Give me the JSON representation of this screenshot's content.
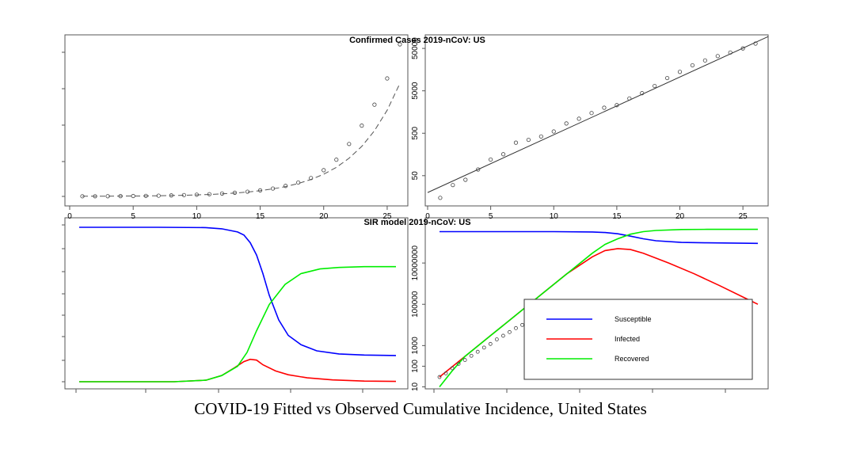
{
  "caption": "COVID-19 Fitted vs Observed Cumulative Incidence, United States",
  "chart_data": [
    {
      "type": "scatter",
      "panel": "top-left",
      "title": "Confirmed Cases 2019-nCoV: US",
      "scale": "linear",
      "xlim": [
        0,
        27
      ],
      "x_ticks": [
        "0",
        "5",
        "10",
        "15",
        "20",
        "25"
      ],
      "series": [
        {
          "style": "observed points",
          "x": [
            1,
            2,
            3,
            4,
            5,
            6,
            7,
            8,
            9,
            10,
            11,
            12,
            13,
            14,
            15,
            16,
            17,
            18,
            19,
            20,
            21,
            22,
            23,
            24,
            25,
            26
          ],
          "values": [
            5,
            6,
            8,
            11,
            15,
            20,
            28,
            38,
            50,
            65,
            85,
            110,
            140,
            180,
            230,
            300,
            400,
            530,
            700,
            1000,
            1400,
            2000,
            2700,
            3500,
            4500,
            5800
          ]
        },
        {
          "style": "fitted curve",
          "x": [
            1,
            2,
            3,
            4,
            5,
            6,
            7,
            8,
            9,
            10,
            11,
            12,
            13,
            14,
            15,
            16,
            17,
            18,
            19,
            20,
            21,
            22,
            23,
            24,
            25,
            26
          ],
          "values": [
            5,
            7,
            9,
            11,
            15,
            19,
            25,
            33,
            43,
            56,
            74,
            97,
            127,
            166,
            218,
            286,
            375,
            492,
            645,
            846,
            1110,
            1456,
            1910,
            2506,
            3287,
            4312
          ]
        }
      ]
    },
    {
      "type": "scatter",
      "panel": "top-right",
      "scale": "log",
      "xlim": [
        0,
        27
      ],
      "x_ticks": [
        "0",
        "5",
        "10",
        "15",
        "20",
        "25"
      ],
      "y_ticks": [
        "50",
        "500",
        "5000",
        "50000"
      ],
      "series": [
        {
          "style": "observed points",
          "x": [
            1,
            2,
            3,
            4,
            5,
            6,
            7,
            8,
            9,
            10,
            11,
            12,
            13,
            14,
            15,
            16,
            17,
            18,
            19,
            20,
            21,
            22,
            23,
            24,
            25,
            26
          ],
          "values": [
            15,
            30,
            40,
            70,
            120,
            160,
            300,
            350,
            420,
            550,
            850,
            1100,
            1500,
            2000,
            2300,
            3300,
            4400,
            6500,
            10000,
            14000,
            20000,
            26000,
            33000,
            40000,
            50000,
            65000
          ]
        },
        {
          "style": "fitted line",
          "x": [
            0,
            27
          ],
          "values": [
            20,
            95000
          ]
        }
      ]
    },
    {
      "type": "line",
      "panel": "bottom-left",
      "title": "SIR model 2019-nCoV: US",
      "scale": "linear",
      "series": [
        {
          "name": "Susceptible",
          "color": "#0000ff",
          "x": [
            0,
            0.25,
            0.4,
            0.45,
            0.5,
            0.52,
            0.54,
            0.56,
            0.58,
            0.6,
            0.63,
            0.66,
            0.7,
            0.75,
            0.82,
            0.9,
            1
          ],
          "values": [
            1.0,
            1.0,
            0.998,
            0.99,
            0.97,
            0.95,
            0.9,
            0.82,
            0.7,
            0.56,
            0.4,
            0.3,
            0.24,
            0.2,
            0.18,
            0.173,
            0.17
          ]
        },
        {
          "name": "Infected",
          "color": "#ff0000",
          "x": [
            0,
            0.3,
            0.4,
            0.45,
            0.49,
            0.52,
            0.54,
            0.56,
            0.58,
            0.62,
            0.66,
            0.72,
            0.8,
            0.9,
            1
          ],
          "values": [
            0.0,
            0.0,
            0.01,
            0.04,
            0.09,
            0.13,
            0.145,
            0.14,
            0.11,
            0.07,
            0.045,
            0.025,
            0.012,
            0.004,
            0.002
          ]
        },
        {
          "name": "Recovered",
          "color": "#00ee00",
          "x": [
            0,
            0.3,
            0.4,
            0.45,
            0.5,
            0.53,
            0.56,
            0.6,
            0.65,
            0.7,
            0.76,
            0.82,
            0.9,
            1
          ],
          "values": [
            0.0,
            0.0,
            0.01,
            0.04,
            0.1,
            0.19,
            0.33,
            0.5,
            0.63,
            0.7,
            0.73,
            0.74,
            0.745,
            0.745
          ]
        }
      ]
    },
    {
      "type": "line",
      "panel": "bottom-right",
      "scale": "log",
      "y_ticks": [
        "10",
        "100",
        "1000",
        "100000",
        "10000000"
      ],
      "legend": [
        "Susceptible",
        "Infected",
        "Recovered"
      ],
      "legend_placement": "bottom-right",
      "series": [
        {
          "name": "Susceptible",
          "color": "#0000ff",
          "x": [
            1,
            10,
            13,
            14,
            15,
            16,
            17,
            18,
            20,
            22,
            26
          ],
          "values": [
            330000000,
            330000000,
            320000000,
            300000000,
            260000000,
            200000000,
            150000000,
            120000000,
            100000000,
            95000000,
            90000000
          ]
        },
        {
          "name": "Infected",
          "color": "#ff0000",
          "x": [
            1,
            3,
            5,
            7,
            9,
            11,
            13,
            14,
            15,
            16,
            17,
            19,
            21,
            23,
            25,
            26
          ],
          "values": [
            30,
            300,
            3000,
            30000,
            300000,
            3000000,
            20000000,
            40000000,
            50000000,
            45000000,
            30000000,
            10000000,
            3000000,
            800000,
            200000,
            100000
          ]
        },
        {
          "name": "Recovered",
          "color": "#00ee00",
          "x": [
            1,
            2,
            3,
            5,
            7,
            9,
            11,
            13,
            14,
            15,
            16,
            17,
            18,
            20,
            22,
            26
          ],
          "values": [
            10,
            60,
            300,
            3000,
            30000,
            300000,
            3000000,
            30000000,
            80000000,
            150000000,
            250000000,
            330000000,
            380000000,
            420000000,
            430000000,
            430000000
          ]
        },
        {
          "style": "observed points",
          "x": [
            1,
            1.5,
            2,
            2.5,
            3,
            3.5,
            4,
            4.5,
            5,
            5.5,
            6,
            6.5,
            7,
            7.5
          ],
          "values": [
            30,
            45,
            80,
            130,
            200,
            320,
            500,
            800,
            1200,
            2000,
            3000,
            4500,
            7000,
            10000
          ]
        }
      ]
    }
  ]
}
